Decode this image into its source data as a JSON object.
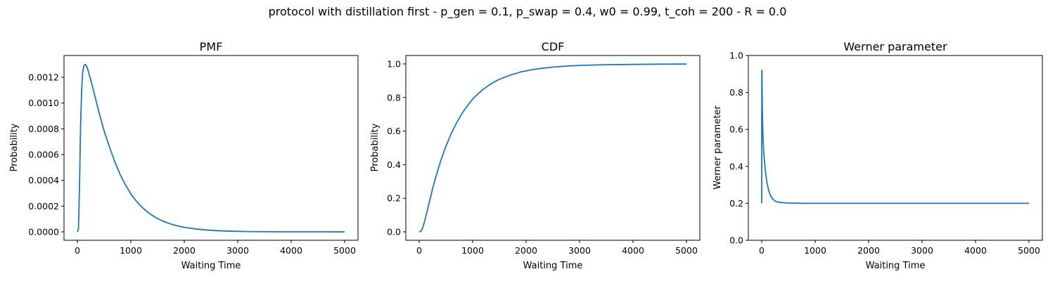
{
  "figure": {
    "suptitle": "protocol with distillation first - p_gen = 0.1, p_swap = 0.4, w0 = 0.99, t_coh = 200 - R = 0.0"
  },
  "colors": {
    "series": "#1f77b4",
    "axes": "#000000",
    "background": "#ffffff"
  },
  "chart_data": [
    {
      "type": "line",
      "title": "PMF",
      "xlabel": "Waiting Time",
      "ylabel": "Probability",
      "xlim": [
        -250,
        5250
      ],
      "ylim": [
        -6.52e-05,
        0.0013692
      ],
      "xticks": [
        0,
        1000,
        2000,
        3000,
        4000,
        5000
      ],
      "xtick_labels": [
        "0",
        "1000",
        "2000",
        "3000",
        "4000",
        "5000"
      ],
      "yticks": [
        0,
        0.0002,
        0.0004,
        0.0006,
        0.0008,
        0.001,
        0.0012
      ],
      "ytick_labels": [
        "0.0000",
        "0.0002",
        "0.0004",
        "0.0006",
        "0.0008",
        "0.0010",
        "0.0012"
      ],
      "grid": false,
      "series": [
        {
          "x": [
            0,
            20,
            40,
            60,
            80,
            100,
            120,
            150,
            180,
            210,
            250,
            300,
            400,
            500,
            600,
            700,
            800,
            900,
            1000,
            1100,
            1200,
            1300,
            1400,
            1500,
            1600,
            1700,
            1800,
            1900,
            2000,
            2200,
            2400,
            2600,
            2800,
            3000,
            3200,
            3500,
            4000,
            4500,
            5000
          ],
          "values": [
            0,
            2e-05,
            0.00035,
            0.00082,
            0.0011,
            0.00124,
            0.00129,
            0.0013,
            0.00128,
            0.00124,
            0.00118,
            0.0011,
            0.000935,
            0.000785,
            0.00066,
            0.000545,
            0.000445,
            0.000365,
            0.000295,
            0.00024,
            0.000195,
            0.000158,
            0.000128,
            0.000103,
            8.35e-05,
            6.75e-05,
            5.4e-05,
            4.4e-05,
            3.55e-05,
            2.3e-05,
            1.48e-05,
            9.5e-06,
            6e-06,
            3.9e-06,
            2.5e-06,
            1.2e-06,
            4e-07,
            1.2e-07,
            4e-08
          ]
        }
      ]
    },
    {
      "type": "line",
      "title": "CDF",
      "xlabel": "Waiting Time",
      "ylabel": "Probability",
      "xlim": [
        -250,
        5250
      ],
      "ylim": [
        -0.05,
        1.05
      ],
      "xticks": [
        0,
        1000,
        2000,
        3000,
        4000,
        5000
      ],
      "xtick_labels": [
        "0",
        "1000",
        "2000",
        "3000",
        "4000",
        "5000"
      ],
      "yticks": [
        0,
        0.2,
        0.4,
        0.6,
        0.8,
        1.0
      ],
      "ytick_labels": [
        "0.0",
        "0.2",
        "0.4",
        "0.6",
        "0.8",
        "1.0"
      ],
      "grid": false,
      "series": [
        {
          "x": [
            0,
            25,
            50,
            75,
            100,
            150,
            200,
            250,
            300,
            400,
            500,
            600,
            700,
            800,
            900,
            1000,
            1100,
            1200,
            1300,
            1400,
            1500,
            1700,
            1900,
            2100,
            2300,
            2500,
            2800,
            3100,
            3500,
            4000,
            4500,
            5000
          ],
          "values": [
            0,
            0.002,
            0.012,
            0.035,
            0.06,
            0.125,
            0.19,
            0.255,
            0.315,
            0.42,
            0.51,
            0.585,
            0.65,
            0.705,
            0.75,
            0.79,
            0.822,
            0.849,
            0.872,
            0.892,
            0.908,
            0.933,
            0.952,
            0.965,
            0.974,
            0.981,
            0.988,
            0.992,
            0.995,
            0.997,
            0.9985,
            0.999
          ]
        }
      ]
    },
    {
      "type": "line",
      "title": "Werner parameter",
      "xlabel": "Waiting Time",
      "ylabel": "Werner parameter",
      "xlim": [
        -250,
        5250
      ],
      "ylim": [
        0,
        1
      ],
      "xticks": [
        0,
        1000,
        2000,
        3000,
        4000,
        5000
      ],
      "xtick_labels": [
        "0",
        "1000",
        "2000",
        "3000",
        "4000",
        "5000"
      ],
      "yticks": [
        0,
        0.2,
        0.4,
        0.6,
        0.8,
        1.0
      ],
      "ytick_labels": [
        "0.0",
        "0.2",
        "0.4",
        "0.6",
        "0.8",
        "1.0"
      ],
      "grid": false,
      "series": [
        {
          "x": [
            0,
            2,
            5,
            8,
            12,
            20,
            30,
            45,
            60,
            80,
            100,
            130,
            160,
            200,
            250,
            300,
            400,
            500,
            600,
            700,
            800,
            1000,
            1500,
            2000,
            3000,
            4000,
            5000
          ],
          "values": [
            0.2,
            0.92,
            0.92,
            0.8,
            0.7,
            0.6,
            0.52,
            0.45,
            0.4,
            0.35,
            0.31,
            0.27,
            0.245,
            0.225,
            0.212,
            0.207,
            0.2035,
            0.2015,
            0.2008,
            0.2004,
            0.2002,
            0.2001,
            0.2,
            0.2,
            0.2,
            0.2,
            0.2
          ]
        }
      ]
    }
  ]
}
